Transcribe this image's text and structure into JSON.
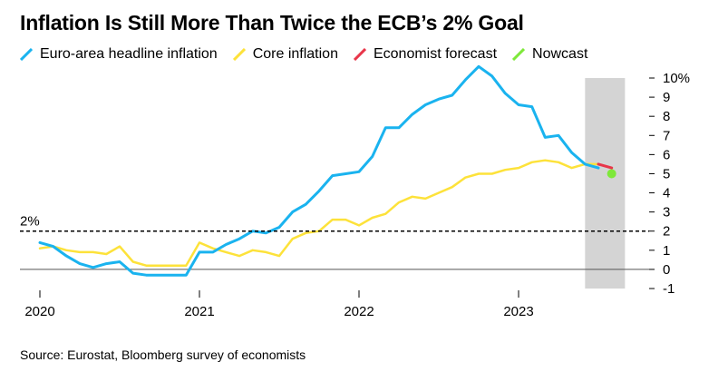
{
  "title": "Inflation Is Still More Than Twice the ECB’s 2% Goal",
  "source": "Source: Eurostat, Bloomberg survey of economists",
  "legend": [
    {
      "label": "Euro-area headline inflation",
      "color": "#1ab3ef",
      "icon": "diagonal-line-swatch"
    },
    {
      "label": "Core inflation",
      "color": "#fde23a",
      "icon": "diagonal-line-swatch"
    },
    {
      "label": "Economist forecast",
      "color": "#e8364a",
      "icon": "diagonal-line-swatch"
    },
    {
      "label": "Nowcast",
      "color": "#7ee83a",
      "icon": "diagonal-line-swatch"
    }
  ],
  "chart_data": {
    "type": "line",
    "title": "Inflation Is Still More Than Twice the ECB’s 2% Goal",
    "xlabel": "",
    "ylabel": "",
    "ylim": [
      -1,
      10
    ],
    "y_ticks": [
      "10%",
      "9",
      "8",
      "7",
      "6",
      "5",
      "4",
      "3",
      "2",
      "1",
      "0",
      "-1"
    ],
    "x_ticks": [
      "2020",
      "2021",
      "2022",
      "2023"
    ],
    "grid": "horizontal baseline at 0 only",
    "legend_position": "top",
    "reference_line": {
      "value": 2,
      "label": "2%",
      "style": "dashed"
    },
    "shaded_region": {
      "from": "2023-06",
      "to": "2023-09",
      "color": "#d4d4d4"
    },
    "x": [
      "2020-01",
      "2020-02",
      "2020-03",
      "2020-04",
      "2020-05",
      "2020-06",
      "2020-07",
      "2020-08",
      "2020-09",
      "2020-10",
      "2020-11",
      "2020-12",
      "2021-01",
      "2021-02",
      "2021-03",
      "2021-04",
      "2021-05",
      "2021-06",
      "2021-07",
      "2021-08",
      "2021-09",
      "2021-10",
      "2021-11",
      "2021-12",
      "2022-01",
      "2022-02",
      "2022-03",
      "2022-04",
      "2022-05",
      "2022-06",
      "2022-07",
      "2022-08",
      "2022-09",
      "2022-10",
      "2022-11",
      "2022-12",
      "2023-01",
      "2023-02",
      "2023-03",
      "2023-04",
      "2023-05",
      "2023-06",
      "2023-07"
    ],
    "series": [
      {
        "name": "Euro-area headline inflation",
        "color": "#1ab3ef",
        "values": [
          1.4,
          1.2,
          0.7,
          0.3,
          0.1,
          0.3,
          0.4,
          -0.2,
          -0.3,
          -0.3,
          -0.3,
          -0.3,
          0.9,
          0.9,
          1.3,
          1.6,
          2.0,
          1.9,
          2.2,
          3.0,
          3.4,
          4.1,
          4.9,
          5.0,
          5.1,
          5.9,
          7.4,
          7.4,
          8.1,
          8.6,
          8.9,
          9.1,
          9.9,
          10.6,
          10.1,
          9.2,
          8.6,
          8.5,
          6.9,
          7.0,
          6.1,
          5.5,
          5.3
        ]
      },
      {
        "name": "Core inflation",
        "color": "#fde23a",
        "values": [
          1.1,
          1.2,
          1.0,
          0.9,
          0.9,
          0.8,
          1.2,
          0.4,
          0.2,
          0.2,
          0.2,
          0.2,
          1.4,
          1.1,
          0.9,
          0.7,
          1.0,
          0.9,
          0.7,
          1.6,
          1.9,
          2.0,
          2.6,
          2.6,
          2.3,
          2.7,
          2.9,
          3.5,
          3.8,
          3.7,
          4.0,
          4.3,
          4.8,
          5.0,
          5.0,
          5.2,
          5.3,
          5.6,
          5.7,
          5.6,
          5.3,
          5.5,
          5.5
        ]
      },
      {
        "name": "Economist forecast",
        "color": "#e8364a",
        "x": [
          "2023-07",
          "2023-08"
        ],
        "values": [
          5.5,
          5.3
        ]
      },
      {
        "name": "Nowcast",
        "color": "#7ee83a",
        "x": [
          "2023-08"
        ],
        "values": [
          5.0
        ]
      }
    ]
  }
}
